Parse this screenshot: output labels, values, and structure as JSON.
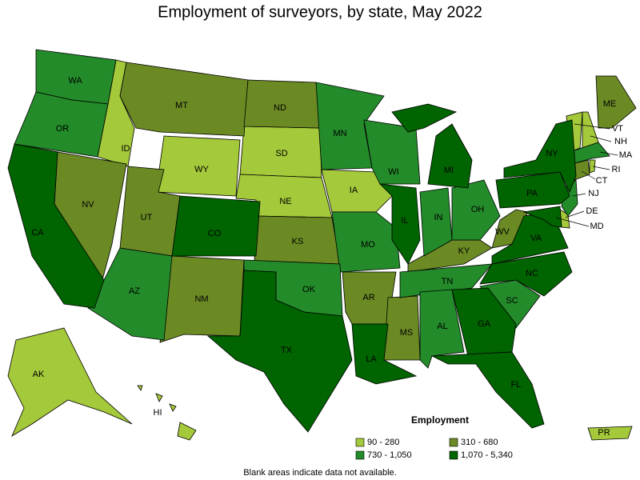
{
  "title": "Employment of surveyors, by state, May 2022",
  "legend": {
    "title": "Employment",
    "items": [
      {
        "label": "90 - 280",
        "color": "#a4c93a",
        "states": [
          "ID",
          "WY",
          "SD",
          "NE",
          "IA",
          "AK",
          "HI",
          "PR",
          "VT",
          "NH",
          "RI",
          "DE"
        ]
      },
      {
        "label": "310 - 680",
        "color": "#6b8a24",
        "states": [
          "MT",
          "ND",
          "NV",
          "UT",
          "NM",
          "KS",
          "AR",
          "MS",
          "KY",
          "WV",
          "ME",
          "CT"
        ]
      },
      {
        "label": "730 - 1,050",
        "color": "#238b2a",
        "states": [
          "WA",
          "OR",
          "AZ",
          "MN",
          "WI",
          "MO",
          "IN",
          "OH",
          "TN",
          "AL",
          "SC",
          "MA",
          "NJ",
          "OK"
        ]
      },
      {
        "label": "1,070 - 5,340",
        "color": "#006400",
        "states": [
          "CA",
          "CO",
          "TX",
          "LA",
          "IL",
          "MI",
          "GA",
          "FL",
          "NC",
          "VA",
          "PA",
          "NY",
          "MD"
        ]
      }
    ]
  },
  "note": "Blank areas indicate data not available."
}
